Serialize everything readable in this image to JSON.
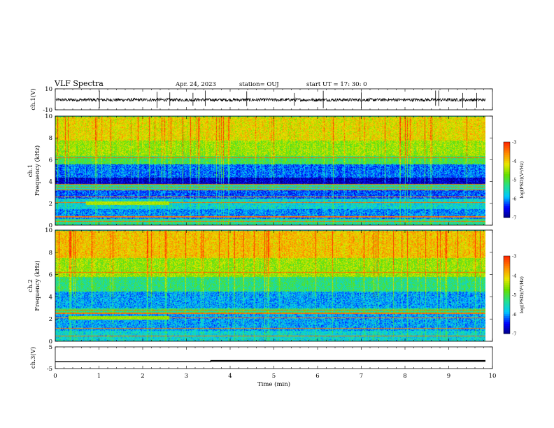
{
  "header": {
    "title": "VLF Spectra",
    "date": "Apr. 24, 2023",
    "station": "station= OUJ",
    "start": "start  UT  =   17: 30: 0"
  },
  "colors": {
    "background": "#ffffff",
    "axis": "#000000",
    "colormap": [
      "#00007f",
      "#0000ff",
      "#00c8ff",
      "#22e090",
      "#64e000",
      "#e8e800",
      "#ff8c00",
      "#ff2a00",
      "#ffffff"
    ]
  },
  "chart_data": [
    {
      "id": "ch1-waveform",
      "type": "line",
      "ylabel": "ch.1(V)",
      "ylim": [
        -10,
        10
      ],
      "yticks": [
        "10",
        "-10"
      ],
      "xlim": [
        0,
        10
      ],
      "series": [
        {
          "baseline": -0.5,
          "noise_amplitude": 1.5,
          "spike_times": [
            1.01,
            2.33,
            2.62,
            3.15,
            3.43,
            4.38,
            5.47,
            6.13,
            7.0,
            8.7,
            8.77,
            9.32,
            9.64
          ]
        }
      ]
    },
    {
      "id": "ch1-spectrogram",
      "type": "heatmap",
      "ylabel": "ch.1\nFrequency  (kHz)",
      "xlim": [
        0,
        10
      ],
      "ylim": [
        0,
        10
      ],
      "yticks": [
        "0",
        "2",
        "4",
        "6",
        "8",
        "10"
      ],
      "colorbar": {
        "label": "log(PSD)(V²/Hz)",
        "range": [
          -7,
          -3
        ],
        "ticks": [
          "-3",
          "-4",
          "-5",
          "-6",
          "-7"
        ]
      },
      "data_end_min": 9.84,
      "bands": [
        {
          "f": [
            0.0,
            0.6
          ],
          "level": -5.3
        },
        {
          "f": [
            0.6,
            1.5
          ],
          "level": -6.0
        },
        {
          "f": [
            1.5,
            2.5
          ],
          "level": -5.6
        },
        {
          "f": [
            2.5,
            3.3
          ],
          "level": -6.2
        },
        {
          "f": [
            3.3,
            3.8
          ],
          "level": -5.4
        },
        {
          "f": [
            3.8,
            4.4
          ],
          "level": -6.7
        },
        {
          "f": [
            4.4,
            5.6
          ],
          "level": -6.1
        },
        {
          "f": [
            5.6,
            6.4
          ],
          "level": -5.0
        },
        {
          "f": [
            6.4,
            7.8
          ],
          "level": -4.5
        },
        {
          "f": [
            7.8,
            10.0
          ],
          "level": -4.1
        }
      ],
      "lines_khz": [
        0.4,
        0.8,
        2.1,
        2.6,
        3.25,
        3.55,
        3.8,
        6.2
      ],
      "event": {
        "t": [
          0.7,
          2.6
        ],
        "f": [
          1.9,
          2.2
        ],
        "level": -4.4
      }
    },
    {
      "id": "ch2-spectrogram",
      "type": "heatmap",
      "ylabel": "ch.2\nFrequency  (kHz)",
      "xlim": [
        0,
        10
      ],
      "ylim": [
        0,
        10
      ],
      "yticks": [
        "0",
        "2",
        "4",
        "6",
        "8",
        "10"
      ],
      "colorbar": {
        "label": "log(PSD)(V²/Hz)",
        "range": [
          -7,
          -3
        ],
        "ticks": [
          "-3",
          "-4",
          "-5",
          "-6",
          "-7"
        ]
      },
      "data_end_min": 9.84,
      "bands": [
        {
          "f": [
            0.0,
            1.0
          ],
          "level": -5.6
        },
        {
          "f": [
            1.0,
            2.5
          ],
          "level": -5.9
        },
        {
          "f": [
            2.5,
            3.0
          ],
          "level": -5.2
        },
        {
          "f": [
            3.0,
            4.5
          ],
          "level": -5.9
        },
        {
          "f": [
            4.5,
            5.8
          ],
          "level": -5.2
        },
        {
          "f": [
            5.8,
            7.5
          ],
          "level": -4.5
        },
        {
          "f": [
            7.5,
            10.0
          ],
          "level": -3.9
        }
      ],
      "lines_khz": [
        0.5,
        1.2,
        2.15,
        2.55,
        2.85,
        6.2
      ],
      "event": {
        "t": [
          0.3,
          2.6
        ],
        "f": [
          2.0,
          2.3
        ],
        "level": -4.5
      }
    },
    {
      "id": "ch3-level",
      "type": "line",
      "ylabel": "ch.3(V)",
      "xlabel": "Time  (min)",
      "ylim": [
        -5,
        5
      ],
      "yticks": [
        "5",
        "-5"
      ],
      "xlim": [
        0,
        10
      ],
      "xticks": [
        "0",
        "1",
        "2",
        "3",
        "4",
        "5",
        "6",
        "7",
        "8",
        "9",
        "10"
      ],
      "series": [
        {
          "points": [
            [
              0,
              -1.8
            ],
            [
              3.55,
              -1.8
            ],
            [
              3.55,
              -1.6
            ],
            [
              9.84,
              -1.6
            ]
          ]
        }
      ]
    }
  ]
}
